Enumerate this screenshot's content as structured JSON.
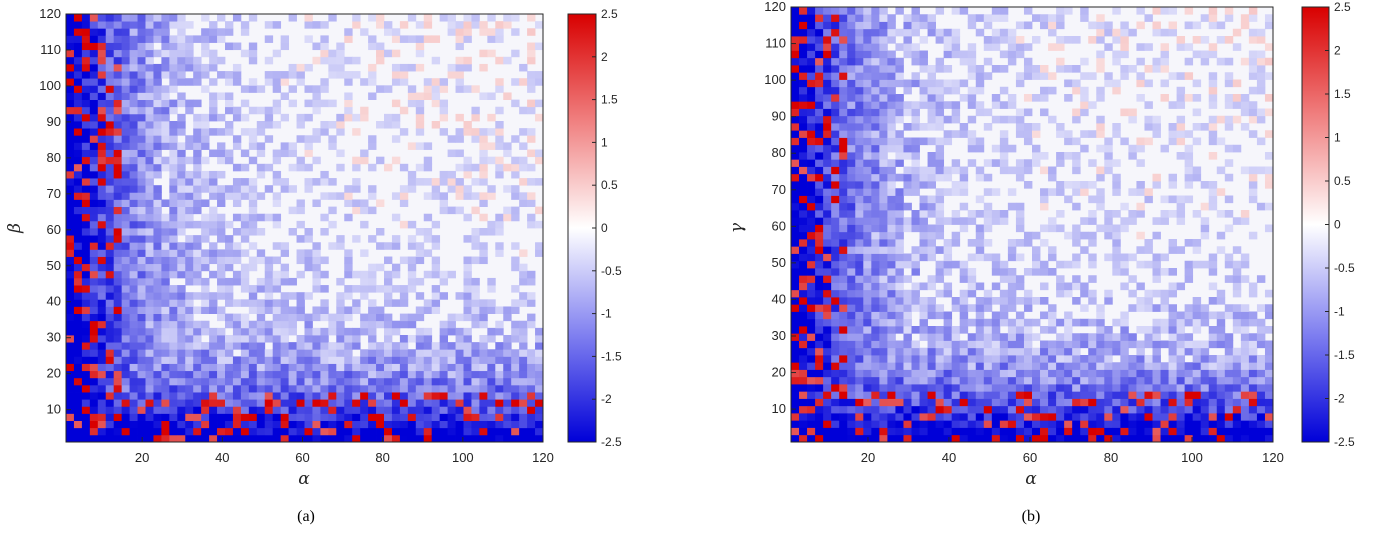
{
  "colors": {
    "neg_max": "#0000d8",
    "mid": "#ffffff",
    "pos_max": "#d80000",
    "background_field": "#f6f6fb",
    "axis": "#262626"
  },
  "chart_data": [
    {
      "type": "heatmap",
      "caption": "(a)",
      "xlabel": "α",
      "ylabel": "β",
      "xlim": [
        1,
        120
      ],
      "ylim": [
        1,
        120
      ],
      "xticks": [
        20,
        40,
        60,
        80,
        100,
        120
      ],
      "yticks": [
        10,
        20,
        30,
        40,
        50,
        60,
        70,
        80,
        90,
        100,
        110,
        120
      ],
      "clim": [
        -2.5,
        2.5
      ],
      "colorbar_ticks": [
        2.5,
        2,
        1.5,
        1,
        0.5,
        0,
        -0.5,
        -1,
        -1.5,
        -2,
        -2.5
      ],
      "colormap": "blue-white-red",
      "seed": 7
    },
    {
      "type": "heatmap",
      "caption": "(b)",
      "xlabel": "α",
      "ylabel": "γ",
      "xlim": [
        1,
        120
      ],
      "ylim": [
        1,
        120
      ],
      "xticks": [
        20,
        40,
        60,
        80,
        100,
        120
      ],
      "yticks": [
        10,
        20,
        30,
        40,
        50,
        60,
        70,
        80,
        90,
        100,
        110,
        120
      ],
      "clim": [
        -2.5,
        2.5
      ],
      "colorbar_ticks": [
        2.5,
        2,
        1.5,
        1,
        0.5,
        0,
        -0.5,
        -1,
        -1.5,
        -2,
        -2.5
      ],
      "colormap": "blue-white-red",
      "seed": 13
    }
  ]
}
